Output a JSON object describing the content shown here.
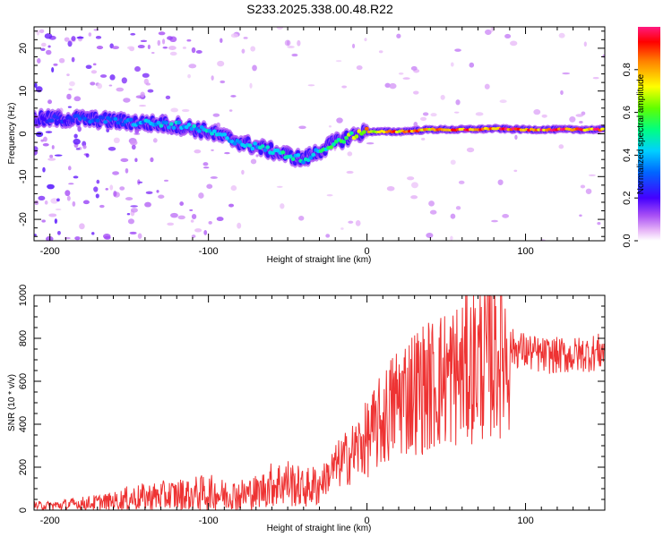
{
  "title": "S233.2025.338.00.48.R22",
  "chart_data": [
    {
      "type": "heatmap",
      "name": "spectrogram",
      "xlabel": "Height of straight line (km)",
      "ylabel": "Frequency (Hz)",
      "xlim": [
        -210,
        150
      ],
      "ylim": [
        -25,
        25
      ],
      "xticks": [
        -200,
        -100,
        0,
        100
      ],
      "yticks": [
        -20,
        -10,
        0,
        10,
        20
      ],
      "colorbar": {
        "label": "Normalized spectral amplitude",
        "range": [
          0,
          1
        ],
        "ticks": [
          0.0,
          0.2,
          0.4,
          0.6,
          0.8
        ]
      },
      "ridge": {
        "x": [
          -200,
          -180,
          -160,
          -140,
          -120,
          -100,
          -80,
          -60,
          -50,
          -40,
          -30,
          -20,
          -10,
          0,
          20,
          40,
          60,
          80,
          100,
          120,
          150
        ],
        "freq": [
          3.5,
          3.5,
          3.0,
          2.5,
          2.0,
          0.5,
          -2.0,
          -4.0,
          -5.0,
          -6.0,
          -4.0,
          -2.0,
          -0.5,
          0.5,
          0.5,
          1.0,
          1.0,
          1.2,
          1.0,
          1.0,
          1.0
        ],
        "amplitude": [
          0.25,
          0.3,
          0.35,
          0.4,
          0.45,
          0.45,
          0.4,
          0.45,
          0.5,
          0.45,
          0.5,
          0.55,
          0.65,
          0.8,
          0.9,
          0.85,
          0.9,
          0.95,
          0.95,
          0.95,
          0.95
        ]
      }
    },
    {
      "type": "line",
      "name": "snr",
      "xlabel": "Height of straight line (km)",
      "ylabel": "SNR (10 * v/v)",
      "xlim": [
        -210,
        150
      ],
      "ylim": [
        0,
        1000
      ],
      "xticks": [
        -200,
        -100,
        0,
        100
      ],
      "yticks": [
        0,
        200,
        400,
        600,
        800,
        1000
      ],
      "color": "#ee3333",
      "series": [
        {
          "name": "SNR",
          "x": [
            -210,
            -200,
            -190,
            -180,
            -170,
            -160,
            -150,
            -140,
            -130,
            -120,
            -110,
            -100,
            -90,
            -80,
            -70,
            -60,
            -50,
            -40,
            -30,
            -20,
            -10,
            0,
            10,
            20,
            30,
            40,
            50,
            60,
            70,
            80,
            90,
            100,
            110,
            120,
            130,
            140,
            150
          ],
          "values": [
            20,
            20,
            25,
            30,
            35,
            40,
            55,
            60,
            65,
            70,
            75,
            80,
            70,
            70,
            80,
            120,
            130,
            100,
            120,
            200,
            260,
            330,
            420,
            520,
            560,
            580,
            620,
            640,
            690,
            720,
            760,
            740,
            720,
            720,
            720,
            730,
            740
          ]
        }
      ]
    }
  ]
}
